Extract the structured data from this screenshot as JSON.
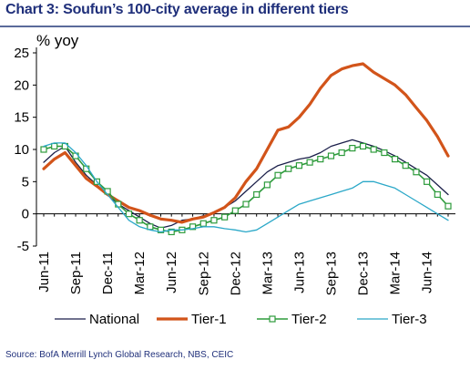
{
  "chart_data": {
    "type": "line",
    "title": "Chart 3: Soufun’s 100-city average in different tiers",
    "ylabel": "% yoy",
    "source": "Source: BofA Merrill Lynch Global Research, NBS, CEIC",
    "ylim": [
      -5,
      25
    ],
    "yticks": [
      "25",
      "20",
      "15",
      "10",
      "5",
      "0",
      "-5"
    ],
    "xtick_labels": [
      "Jun-11",
      "Sep-11",
      "Dec-11",
      "Mar-12",
      "Jun-12",
      "Sep-12",
      "Dec-12",
      "Mar-13",
      "Jun-13",
      "Sep-13",
      "Dec-13",
      "Mar-14",
      "Jun-14"
    ],
    "x": [
      "Jun-11",
      "Jul-11",
      "Aug-11",
      "Sep-11",
      "Oct-11",
      "Nov-11",
      "Dec-11",
      "Jan-12",
      "Feb-12",
      "Mar-12",
      "Apr-12",
      "May-12",
      "Jun-12",
      "Jul-12",
      "Aug-12",
      "Sep-12",
      "Oct-12",
      "Nov-12",
      "Dec-12",
      "Jan-13",
      "Feb-13",
      "Mar-13",
      "Apr-13",
      "May-13",
      "Jun-13",
      "Jul-13",
      "Aug-13",
      "Sep-13",
      "Oct-13",
      "Nov-13",
      "Dec-13",
      "Jan-14",
      "Feb-14",
      "Mar-14",
      "Apr-14",
      "May-14",
      "Jun-14",
      "Jul-14",
      "Aug-14"
    ],
    "series": [
      {
        "name": "National",
        "color": "#1b1f4a",
        "width": 1.3,
        "marker": "none",
        "values": [
          8.0,
          9.5,
          10.5,
          8.0,
          6.0,
          4.5,
          3.0,
          1.5,
          0.5,
          -0.5,
          -1.5,
          -2.2,
          -1.8,
          -1.0,
          -0.8,
          -0.3,
          0.2,
          1.0,
          2.0,
          3.5,
          5.0,
          6.5,
          7.5,
          8.0,
          8.5,
          8.8,
          9.5,
          10.5,
          11.0,
          11.5,
          11.0,
          10.5,
          9.8,
          9.0,
          8.0,
          7.0,
          6.0,
          4.5,
          3.0
        ]
      },
      {
        "name": "Tier-1",
        "color": "#d2541a",
        "width": 3.2,
        "marker": "none",
        "values": [
          7.0,
          8.5,
          9.5,
          7.5,
          5.5,
          4.3,
          3.0,
          2.0,
          1.0,
          0.5,
          -0.2,
          -0.8,
          -1.0,
          -1.3,
          -0.8,
          -0.5,
          0.2,
          1.0,
          2.5,
          5.0,
          7.0,
          10.0,
          13.0,
          13.5,
          15.0,
          17.0,
          19.5,
          21.5,
          22.5,
          23.0,
          23.3,
          22.0,
          21.0,
          20.0,
          18.5,
          16.5,
          14.5,
          12.0,
          9.0
        ]
      },
      {
        "name": "Tier-2",
        "color": "#2e9b3c",
        "width": 1.6,
        "marker": "square",
        "values": [
          10.0,
          10.5,
          10.5,
          9.0,
          7.0,
          5.0,
          3.5,
          1.5,
          0,
          -1.0,
          -2.0,
          -2.5,
          -2.8,
          -2.5,
          -2.0,
          -1.5,
          -1.0,
          -0.5,
          0.5,
          1.5,
          3.0,
          4.5,
          6.0,
          7.0,
          7.5,
          8.0,
          8.5,
          9.0,
          9.5,
          10.2,
          10.5,
          10.0,
          9.5,
          8.5,
          7.5,
          6.5,
          5.0,
          3.0,
          1.2
        ]
      },
      {
        "name": "Tier-3",
        "color": "#2ba8c8",
        "width": 1.3,
        "marker": "none",
        "values": [
          10.5,
          11.0,
          11.0,
          9.5,
          7.5,
          5.0,
          3.0,
          1.0,
          -1.0,
          -2.0,
          -2.5,
          -2.8,
          -2.5,
          -2.5,
          -2.3,
          -2.0,
          -2.0,
          -2.3,
          -2.5,
          -2.8,
          -2.5,
          -1.5,
          -0.5,
          0.5,
          1.5,
          2.0,
          2.5,
          3.0,
          3.5,
          4.0,
          5.0,
          5.0,
          4.5,
          4.0,
          3.0,
          2.0,
          1.0,
          0.0,
          -1.0
        ]
      }
    ],
    "grid": false,
    "legend_position": "bottom"
  }
}
